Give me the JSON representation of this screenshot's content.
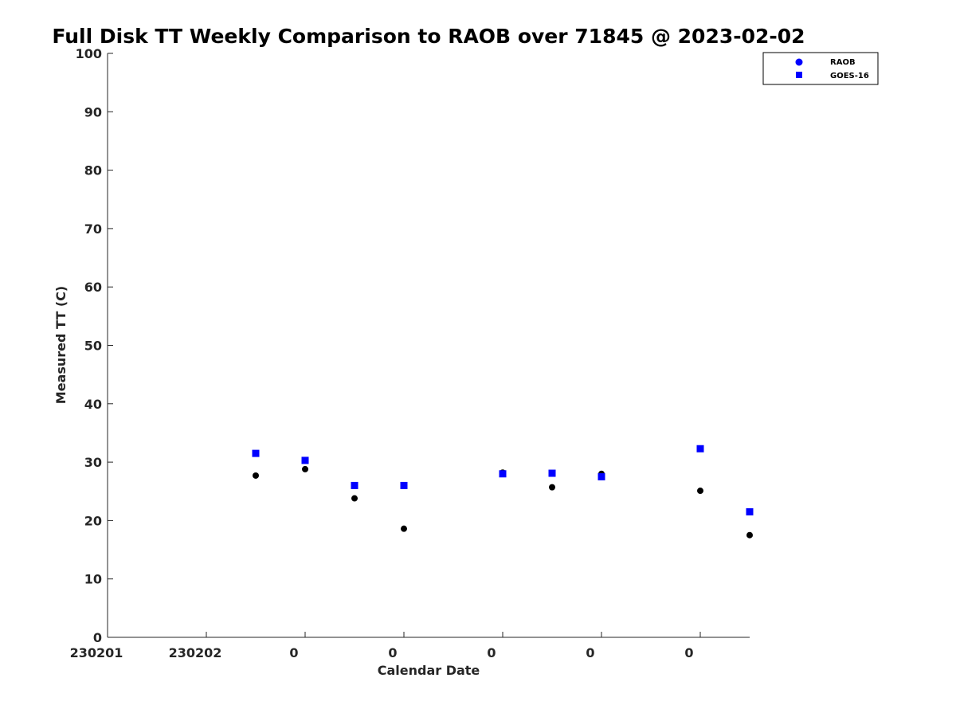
{
  "chart_data": {
    "type": "scatter",
    "title": "Full Disk TT Weekly Comparison to RAOB over 71845 @ 2023-02-02",
    "xlabel": "Calendar Date",
    "ylabel": "Measured TT (C)",
    "ylim": [
      0,
      100
    ],
    "yticks": [
      0,
      10,
      20,
      30,
      40,
      50,
      60,
      70,
      80,
      90,
      100
    ],
    "xlim": [
      0,
      6.5
    ],
    "xticks": [
      0,
      1,
      2,
      3,
      4,
      5,
      6
    ],
    "xtick_labels": [
      "230201",
      "230202",
      "0",
      "0",
      "0",
      "0",
      "0"
    ],
    "grid": false,
    "legend_position": "top-right",
    "series": [
      {
        "name": "RAOB",
        "marker": "circle",
        "color": "#000000",
        "legend_color": "#0000ff",
        "x": [
          1.5,
          2.0,
          2.5,
          3.0,
          4.0,
          4.5,
          5.0,
          6.0,
          6.5
        ],
        "values": [
          27.7,
          28.8,
          23.8,
          18.6,
          28.2,
          25.7,
          28.0,
          25.1,
          17.5
        ]
      },
      {
        "name": "GOES-16",
        "marker": "square",
        "color": "#0000ff",
        "legend_color": "#0000ff",
        "x": [
          1.5,
          2.0,
          2.5,
          3.0,
          4.0,
          4.5,
          5.0,
          6.0,
          6.5
        ],
        "values": [
          31.5,
          30.3,
          26.0,
          26.0,
          28.0,
          28.1,
          27.5,
          32.3,
          21.5
        ]
      }
    ]
  }
}
